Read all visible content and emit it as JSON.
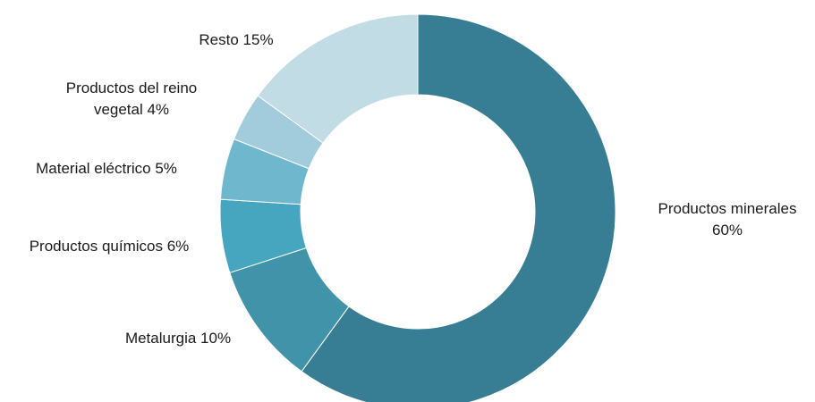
{
  "chart_data": {
    "type": "pie",
    "donut": true,
    "title": "",
    "slices": [
      {
        "label": "Productos minerales",
        "value": 60,
        "display": [
          "Productos minerales",
          "60%"
        ],
        "color": "#377d93"
      },
      {
        "label": "Metalurgia",
        "value": 10,
        "display": [
          "Metalurgia 10%"
        ],
        "color": "#4193a9"
      },
      {
        "label": "Productos químicos",
        "value": 6,
        "display": [
          "Productos químicos 6%"
        ],
        "color": "#46a5bf"
      },
      {
        "label": "Material eléctrico",
        "value": 5,
        "display": [
          "Material eléctrico 5%"
        ],
        "color": "#6fb7cd"
      },
      {
        "label": "Productos del reino vegetal",
        "value": 4,
        "display": [
          "Productos del reino",
          "vegetal 4%"
        ],
        "color": "#a2cbdb"
      },
      {
        "label": "Resto",
        "value": 15,
        "display": [
          "Resto 15%"
        ],
        "color": "#c2dce5"
      }
    ]
  }
}
